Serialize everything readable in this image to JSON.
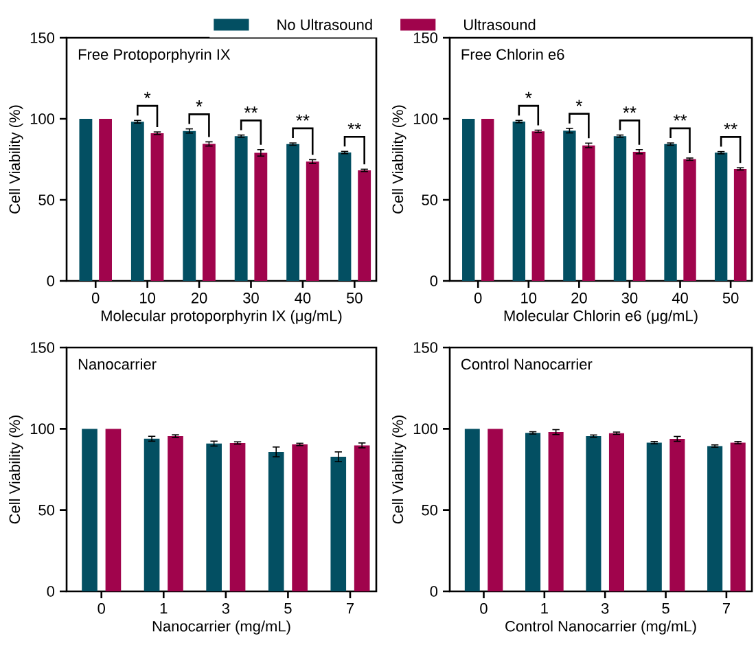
{
  "chart_data": [
    {
      "type": "bar",
      "title": "Free Protoporphyrin IX",
      "xlabel": "Molecular protoporphyrin IX (μg/mL)",
      "ylabel": "Cell Viability (%)",
      "categories": [
        "0",
        "10",
        "20",
        "30",
        "40",
        "50"
      ],
      "series": [
        {
          "name": "No Ultrasound",
          "color": "#034f62",
          "values": [
            100,
            98.2,
            92.5,
            89.3,
            84.4,
            79.2
          ],
          "errors": [
            null,
            0.8,
            1.3,
            0.7,
            0.7,
            0.7
          ]
        },
        {
          "name": "Ultrasound",
          "color": "#a0044c",
          "values": [
            100,
            91.1,
            84.5,
            79.0,
            73.6,
            68.2
          ],
          "errors": [
            null,
            0.8,
            1.3,
            2.0,
            1.2,
            0.7
          ]
        }
      ],
      "ylim": [
        0,
        150
      ],
      "yticks": [
        0,
        50,
        100,
        150
      ],
      "legend": "top",
      "annotations": [
        "*",
        "*",
        "**",
        "**",
        "**"
      ]
    },
    {
      "type": "bar",
      "title": "Free Chlorin e6",
      "xlabel": "Molecular Chlorin e6 (μg/mL)",
      "ylabel": "Cell Viability (%)",
      "categories": [
        "0",
        "10",
        "20",
        "30",
        "40",
        "50"
      ],
      "series": [
        {
          "color": "#034f62",
          "values": [
            100,
            98.3,
            92.7,
            89.3,
            84.4,
            79.1
          ],
          "errors": [
            null,
            0.7,
            1.4,
            0.7,
            0.7,
            0.7
          ]
        },
        {
          "color": "#a0044c",
          "values": [
            100,
            92.3,
            83.6,
            79.7,
            75.1,
            69.1
          ],
          "errors": [
            null,
            0.7,
            1.4,
            1.3,
            0.7,
            0.7
          ]
        }
      ],
      "ylim": [
        0,
        150
      ],
      "yticks": [
        0,
        50,
        100,
        150
      ],
      "annotations": [
        "*",
        "*",
        "**",
        "**",
        "**"
      ]
    },
    {
      "type": "bar",
      "title": "Nanocarrier",
      "xlabel": "Nanocarrier (mg/mL)",
      "ylabel": "Cell Viability (%)",
      "categories": [
        "0",
        "1",
        "3",
        "5",
        "7"
      ],
      "series": [
        {
          "color": "#034f62",
          "values": [
            100,
            93.9,
            90.9,
            85.8,
            82.8
          ],
          "errors": [
            null,
            1.5,
            1.5,
            3,
            3
          ]
        },
        {
          "color": "#a0044c",
          "values": [
            100,
            95.5,
            91.3,
            90.4,
            89.8
          ],
          "errors": [
            null,
            0.8,
            0.7,
            0.7,
            1.5
          ]
        }
      ],
      "ylim": [
        0,
        150
      ],
      "yticks": [
        0,
        50,
        100,
        150
      ]
    },
    {
      "type": "bar",
      "title": "Control Nanocarrier",
      "xlabel": "Control Nanocarrier (mg/mL)",
      "ylabel": "Cell Viability (%)",
      "categories": [
        "0",
        "1",
        "3",
        "5",
        "7"
      ],
      "series": [
        {
          "color": "#034f62",
          "values": [
            100,
            97.5,
            95.5,
            91.5,
            89.4
          ],
          "errors": [
            null,
            0.7,
            0.7,
            0.7,
            0.7
          ]
        },
        {
          "color": "#a0044c",
          "values": [
            100,
            98.0,
            97.3,
            93.8,
            91.5
          ],
          "errors": [
            null,
            1.5,
            0.7,
            1.5,
            0.7
          ]
        }
      ],
      "ylim": [
        0,
        150
      ],
      "yticks": [
        0,
        50,
        100,
        150
      ]
    }
  ]
}
